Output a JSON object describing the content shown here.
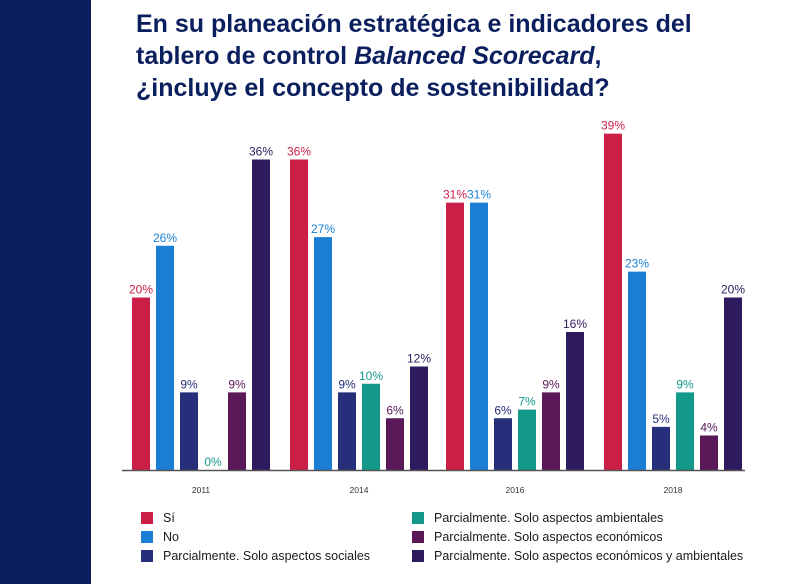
{
  "title": {
    "line1": "En su planeación estratégica e indicadores del",
    "line2_prefix": "tablero de control ",
    "line2_italic": "Balanced Scorecard",
    "line2_suffix": ",",
    "line3": "¿incluye el concepto de sostenibilidad?"
  },
  "colors": {
    "sidebar": "#0b1f5e",
    "title": "#0b1f5e",
    "si": "#cc1f48",
    "no": "#1a7fd4",
    "sociales": "#252f7a",
    "ambientales": "#13998a",
    "economicos": "#5a1858",
    "econ_amb": "#2e1a5e"
  },
  "chart_data": {
    "type": "bar",
    "title": "En su planeación estratégica e indicadores del tablero de control Balanced Scorecard, ¿incluye el concepto de sostenibilidad?",
    "xlabel": "",
    "ylabel": "",
    "ylim": [
      0,
      40
    ],
    "value_suffix": "%",
    "categories": [
      "2011",
      "2014",
      "2016",
      "2018"
    ],
    "series": [
      {
        "key": "si",
        "name": "Sí",
        "values": [
          20,
          36,
          31,
          39
        ]
      },
      {
        "key": "no",
        "name": "No",
        "values": [
          26,
          27,
          31,
          23
        ]
      },
      {
        "key": "sociales",
        "name": "Parcialmente. Solo aspectos sociales",
        "values": [
          9,
          9,
          6,
          5
        ]
      },
      {
        "key": "ambientales",
        "name": "Parcialmente. Solo aspectos ambientales",
        "values": [
          0,
          10,
          7,
          9
        ]
      },
      {
        "key": "economicos",
        "name": "Parcialmente. Solo aspectos económicos",
        "values": [
          9,
          6,
          9,
          4
        ]
      },
      {
        "key": "econ_amb",
        "name": "Parcialmente. Solo aspectos económicos y ambientales",
        "values": [
          36,
          12,
          16,
          20
        ]
      }
    ],
    "legend": {
      "position": "bottom",
      "items": [
        {
          "key": "si",
          "label": "Sí"
        },
        {
          "key": "no",
          "label": "No"
        },
        {
          "key": "sociales",
          "label": "Parcialmente. Solo aspectos sociales"
        },
        {
          "key": "ambientales",
          "label": "Parcialmente. Solo aspectos ambientales"
        },
        {
          "key": "economicos",
          "label": "Parcialmente. Solo aspectos económicos"
        },
        {
          "key": "econ_amb",
          "label": "Parcialmente. Solo aspectos económicos y ambientales"
        }
      ]
    }
  }
}
